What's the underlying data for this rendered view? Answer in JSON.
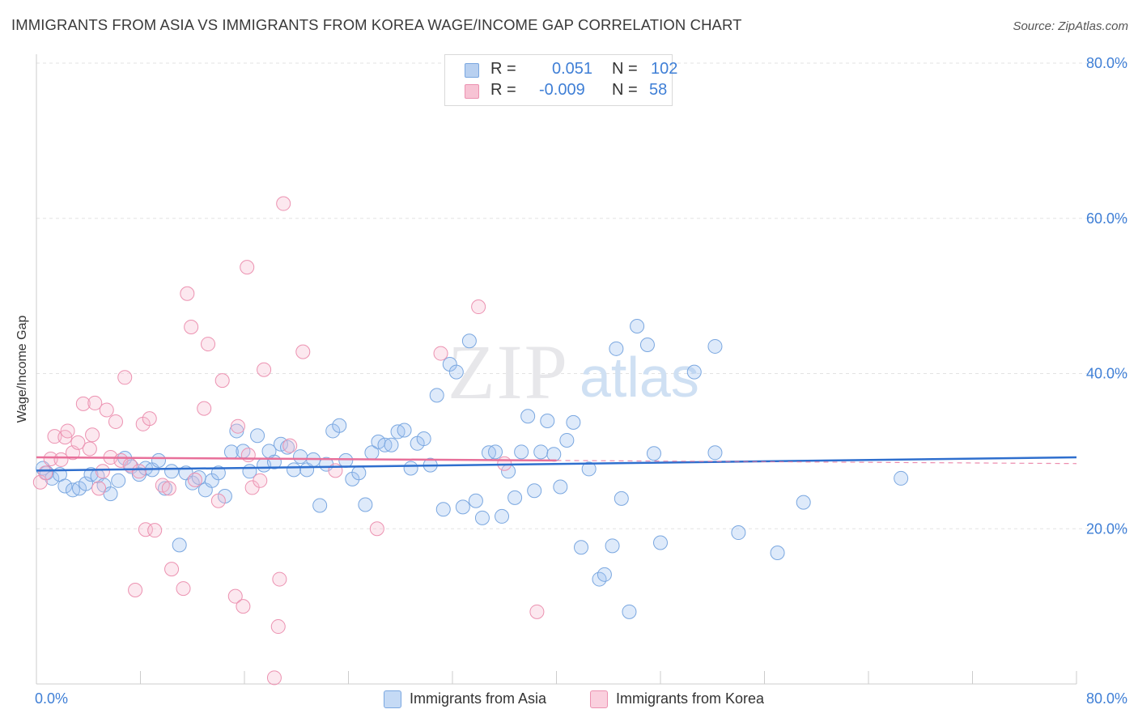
{
  "header": {
    "title": "IMMIGRANTS FROM ASIA VS IMMIGRANTS FROM KOREA WAGE/INCOME GAP CORRELATION CHART",
    "source": "Source: ZipAtlas.com"
  },
  "watermark": {
    "zip": "ZIP",
    "atlas": "atlas"
  },
  "legend": {
    "rows": [
      {
        "r_label": "R =",
        "r_value": "0.051",
        "n_label": "N =",
        "n_value": "102",
        "color": "#b8d0f0",
        "stroke": "#7aa7e0"
      },
      {
        "r_label": "R =",
        "r_value": "-0.009",
        "n_label": "N =",
        "n_value": "58",
        "color": "#f7c3d4",
        "stroke": "#ec92b1"
      }
    ]
  },
  "bottom_legend": [
    {
      "label": "Immigrants from Asia",
      "color": "#c5daf5",
      "stroke": "#7aa7e0"
    },
    {
      "label": "Immigrants from Korea",
      "color": "#fad0de",
      "stroke": "#ec92b1"
    }
  ],
  "chart_data": {
    "type": "scatter",
    "title": "IMMIGRANTS FROM ASIA VS IMMIGRANTS FROM KOREA WAGE/INCOME GAP CORRELATION CHART",
    "xlabel": "",
    "ylabel": "Wage/Income Gap",
    "xlim": [
      0,
      80
    ],
    "ylim": [
      0,
      80
    ],
    "x_tick_labels": [
      "0.0%",
      "80.0%"
    ],
    "y_tick_labels": [
      "20.0%",
      "40.0%",
      "60.0%",
      "80.0%"
    ],
    "y_ticks": [
      20,
      40,
      60,
      80
    ],
    "grid": true,
    "legend_position": "top-center",
    "series": [
      {
        "name": "Immigrants from Asia",
        "color": "#7aa7e0",
        "fill": "rgba(160,195,240,0.35)",
        "trend": {
          "x": [
            0,
            80
          ],
          "y": [
            27.5,
            29.2
          ],
          "color": "#2f6fce"
        },
        "points": [
          [
            0.5,
            27.8
          ],
          [
            0.8,
            27.2
          ],
          [
            1.2,
            26.5
          ],
          [
            1.8,
            27.0
          ],
          [
            2.2,
            25.5
          ],
          [
            2.8,
            25.0
          ],
          [
            3.3,
            25.2
          ],
          [
            3.8,
            25.8
          ],
          [
            4.2,
            27.0
          ],
          [
            4.7,
            26.8
          ],
          [
            5.2,
            25.6
          ],
          [
            5.7,
            24.5
          ],
          [
            6.3,
            26.2
          ],
          [
            6.8,
            29.1
          ],
          [
            7.3,
            28.0
          ],
          [
            7.9,
            27.0
          ],
          [
            8.4,
            27.8
          ],
          [
            8.9,
            27.6
          ],
          [
            9.4,
            28.8
          ],
          [
            9.9,
            25.2
          ],
          [
            10.4,
            27.4
          ],
          [
            11.0,
            17.9
          ],
          [
            11.5,
            27.2
          ],
          [
            12.0,
            25.9
          ],
          [
            12.5,
            26.6
          ],
          [
            13.0,
            25.0
          ],
          [
            13.5,
            26.2
          ],
          [
            14.0,
            27.2
          ],
          [
            14.5,
            24.2
          ],
          [
            15.0,
            29.9
          ],
          [
            15.4,
            32.6
          ],
          [
            15.9,
            30.0
          ],
          [
            16.4,
            27.4
          ],
          [
            17.0,
            32.0
          ],
          [
            17.5,
            28.2
          ],
          [
            17.9,
            30.0
          ],
          [
            18.3,
            28.6
          ],
          [
            18.8,
            30.9
          ],
          [
            19.3,
            30.5
          ],
          [
            19.8,
            27.6
          ],
          [
            20.3,
            29.3
          ],
          [
            20.8,
            27.6
          ],
          [
            21.3,
            28.9
          ],
          [
            21.8,
            23.0
          ],
          [
            22.3,
            28.3
          ],
          [
            22.8,
            32.6
          ],
          [
            23.3,
            33.3
          ],
          [
            23.8,
            28.8
          ],
          [
            24.3,
            26.4
          ],
          [
            24.8,
            27.2
          ],
          [
            25.3,
            23.1
          ],
          [
            25.8,
            29.8
          ],
          [
            26.3,
            31.2
          ],
          [
            26.8,
            30.8
          ],
          [
            27.3,
            30.8
          ],
          [
            27.8,
            32.5
          ],
          [
            28.3,
            32.7
          ],
          [
            28.8,
            27.8
          ],
          [
            29.3,
            31.0
          ],
          [
            29.8,
            31.6
          ],
          [
            30.3,
            28.2
          ],
          [
            30.8,
            37.2
          ],
          [
            31.3,
            22.5
          ],
          [
            31.8,
            41.2
          ],
          [
            32.3,
            40.2
          ],
          [
            32.8,
            22.8
          ],
          [
            33.3,
            44.2
          ],
          [
            33.8,
            23.6
          ],
          [
            34.3,
            21.4
          ],
          [
            34.8,
            29.8
          ],
          [
            35.3,
            29.9
          ],
          [
            35.8,
            21.6
          ],
          [
            36.3,
            27.4
          ],
          [
            36.8,
            24.0
          ],
          [
            37.3,
            29.9
          ],
          [
            37.8,
            34.5
          ],
          [
            38.3,
            24.9
          ],
          [
            38.8,
            29.9
          ],
          [
            39.3,
            33.9
          ],
          [
            39.8,
            29.6
          ],
          [
            40.3,
            25.4
          ],
          [
            40.8,
            31.4
          ],
          [
            41.3,
            33.7
          ],
          [
            41.9,
            17.6
          ],
          [
            42.5,
            27.7
          ],
          [
            43.3,
            13.5
          ],
          [
            43.7,
            14.1
          ],
          [
            44.3,
            17.8
          ],
          [
            44.6,
            43.2
          ],
          [
            45.0,
            23.9
          ],
          [
            45.6,
            9.3
          ],
          [
            46.2,
            46.1
          ],
          [
            47.0,
            43.7
          ],
          [
            47.5,
            29.7
          ],
          [
            48.0,
            18.2
          ],
          [
            50.6,
            40.2
          ],
          [
            52.2,
            43.5
          ],
          [
            52.2,
            29.8
          ],
          [
            54.0,
            19.5
          ],
          [
            57.0,
            16.9
          ],
          [
            59.0,
            23.4
          ],
          [
            66.5,
            26.5
          ]
        ]
      },
      {
        "name": "Immigrants from Korea",
        "color": "#ec92b1",
        "fill": "rgba(247,190,210,0.35)",
        "trend": {
          "x": [
            0,
            40
          ],
          "y": [
            29.2,
            28.8
          ],
          "color": "#e8709a"
        },
        "points": [
          [
            0.3,
            26.0
          ],
          [
            0.7,
            27.2
          ],
          [
            1.1,
            29.0
          ],
          [
            1.4,
            31.9
          ],
          [
            1.9,
            28.9
          ],
          [
            2.2,
            31.8
          ],
          [
            2.4,
            32.6
          ],
          [
            2.8,
            29.8
          ],
          [
            3.2,
            31.1
          ],
          [
            3.6,
            36.1
          ],
          [
            4.1,
            30.3
          ],
          [
            4.3,
            32.1
          ],
          [
            4.5,
            36.2
          ],
          [
            4.8,
            25.2
          ],
          [
            5.1,
            27.4
          ],
          [
            5.4,
            35.3
          ],
          [
            5.7,
            29.2
          ],
          [
            6.1,
            33.8
          ],
          [
            6.5,
            28.8
          ],
          [
            6.8,
            39.5
          ],
          [
            7.2,
            28.2
          ],
          [
            7.6,
            12.1
          ],
          [
            7.9,
            27.4
          ],
          [
            8.2,
            33.5
          ],
          [
            8.4,
            19.9
          ],
          [
            8.7,
            34.2
          ],
          [
            9.1,
            19.8
          ],
          [
            9.7,
            25.6
          ],
          [
            10.2,
            25.2
          ],
          [
            10.4,
            14.8
          ],
          [
            11.3,
            12.3
          ],
          [
            11.6,
            50.3
          ],
          [
            11.9,
            46.0
          ],
          [
            12.2,
            26.3
          ],
          [
            12.9,
            35.5
          ],
          [
            13.2,
            43.8
          ],
          [
            14.0,
            23.6
          ],
          [
            14.3,
            39.1
          ],
          [
            15.3,
            11.3
          ],
          [
            15.5,
            33.2
          ],
          [
            15.9,
            10.0
          ],
          [
            16.2,
            53.7
          ],
          [
            16.3,
            29.5
          ],
          [
            16.6,
            25.3
          ],
          [
            17.2,
            26.2
          ],
          [
            17.5,
            40.5
          ],
          [
            18.3,
            0.8
          ],
          [
            18.6,
            7.4
          ],
          [
            18.7,
            13.5
          ],
          [
            19.0,
            61.9
          ],
          [
            19.5,
            30.7
          ],
          [
            20.5,
            42.8
          ],
          [
            23.0,
            27.5
          ],
          [
            26.2,
            20.0
          ],
          [
            31.1,
            42.6
          ],
          [
            34.0,
            48.6
          ],
          [
            36.0,
            28.4
          ],
          [
            38.5,
            9.3
          ]
        ]
      }
    ]
  }
}
